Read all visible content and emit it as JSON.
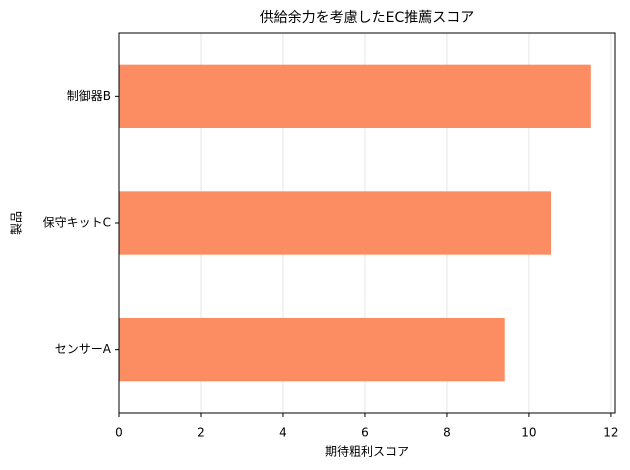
{
  "chart_data": {
    "type": "barh",
    "title": "供給余力を考慮したEC推薦スコア",
    "x_label": "期待粗利スコア",
    "y_label": "製品",
    "categories": [
      "センサーA",
      "保守キットC",
      "制御器B"
    ],
    "values": [
      9.41,
      10.54,
      11.51
    ],
    "color": "#fc8d62",
    "xlim": [
      0,
      12.1
    ],
    "xticks": [
      0,
      2,
      4,
      6,
      8,
      10,
      12
    ],
    "grid": true
  }
}
